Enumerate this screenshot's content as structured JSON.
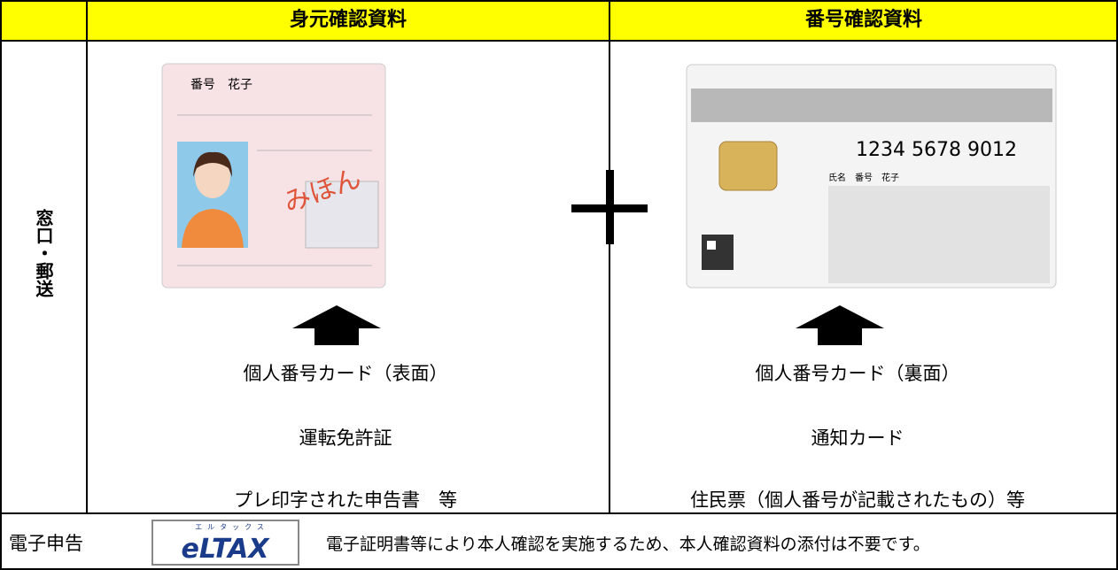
{
  "header": {
    "identity": "身元確認資料",
    "number": "番号確認資料"
  },
  "side_label": "窓口・郵送",
  "identity_docs": [
    "個人番号カード（表面）",
    "運転免許証",
    "プレ印字された申告書　等"
  ],
  "number_docs": [
    "個人番号カード（裏面）",
    "通知カード",
    "住民票（個人番号が記載されたもの）等"
  ],
  "card_front": {
    "name": "番号　花子",
    "stamp": "みほん"
  },
  "card_back": {
    "number": "1234 5678 9012",
    "name": "氏名　番号　花子"
  },
  "e_filing": {
    "label": "電子申告",
    "logo_ruby": "エルタックス",
    "logo": "eLTAX",
    "note": "電子証明書等により本人確認を実施するため、本人確認資料の添付は不要です。"
  }
}
